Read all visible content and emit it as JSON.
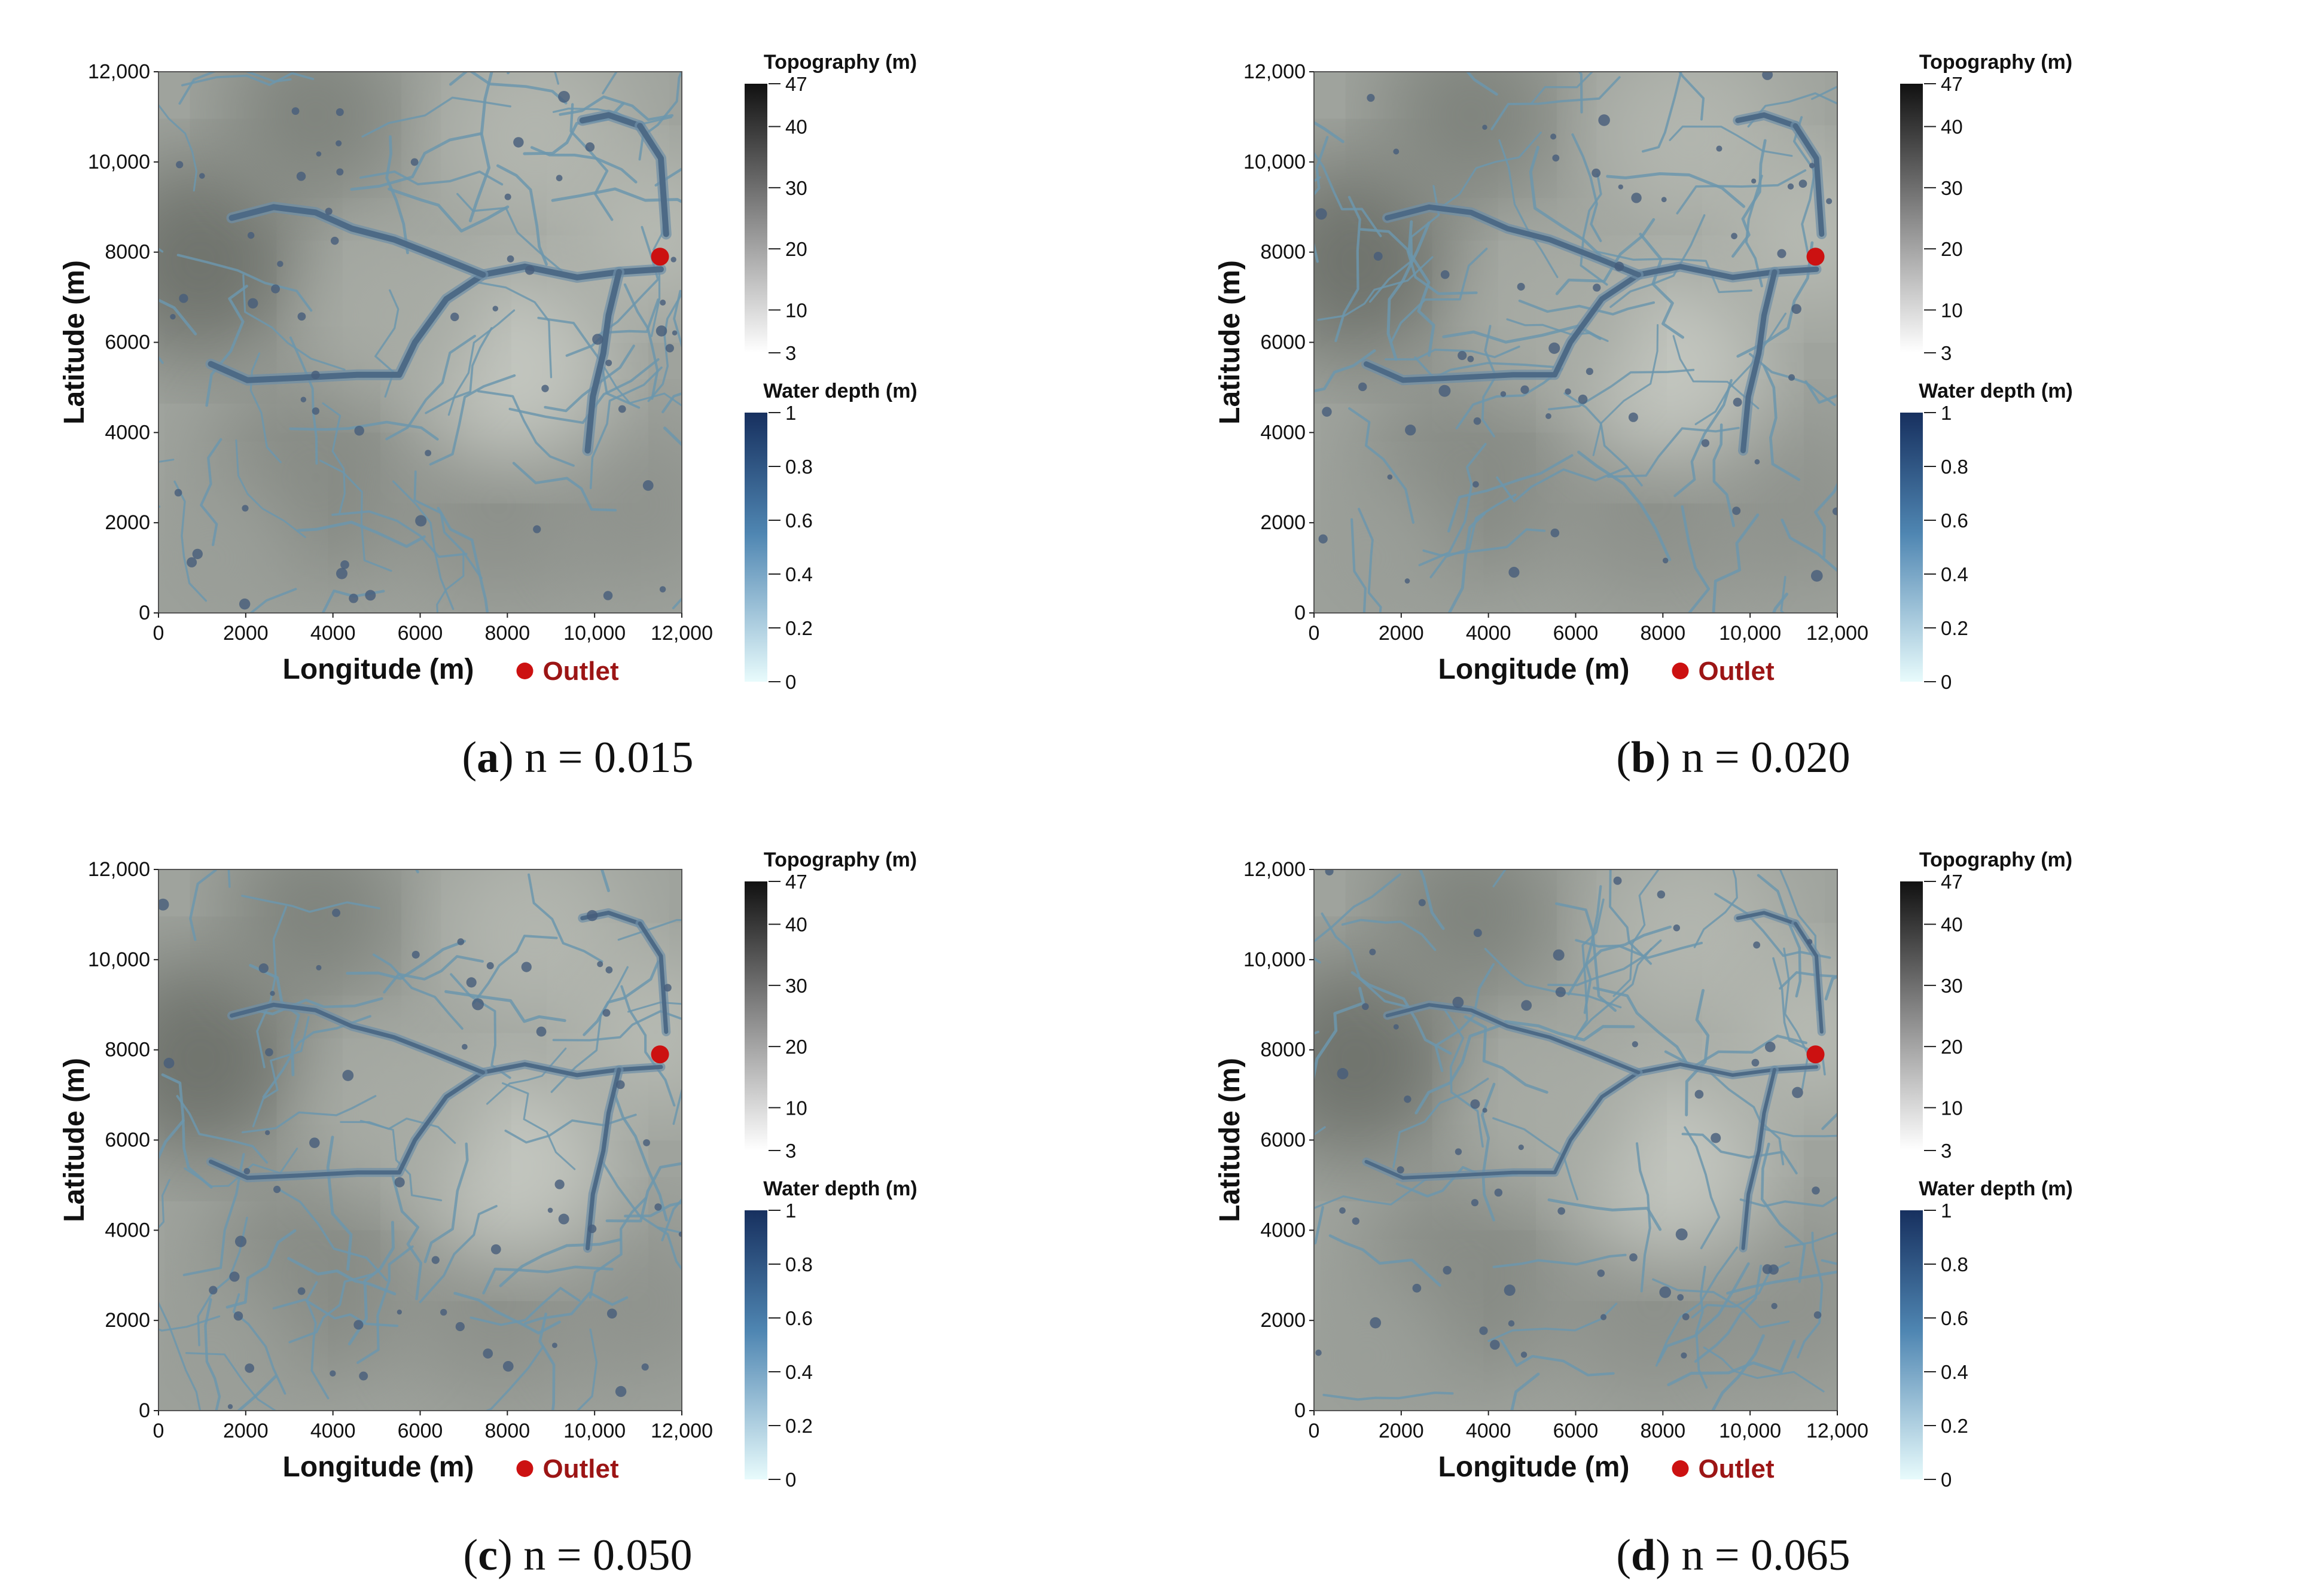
{
  "common": {
    "x_label": "Longitude (m)",
    "y_label": "Latitude (m)",
    "x_ticks": [
      "0",
      "2000",
      "4000",
      "6000",
      "8000",
      "10,000",
      "12,000"
    ],
    "x_tick_values": [
      0,
      2000,
      4000,
      6000,
      8000,
      10000,
      12000
    ],
    "y_ticks": [
      "0",
      "2000",
      "4000",
      "6000",
      "8000",
      "10,000",
      "12,000"
    ],
    "y_tick_values": [
      0,
      2000,
      4000,
      6000,
      8000,
      10000,
      12000
    ],
    "extent_m": [
      0,
      12000
    ],
    "topography_legend": {
      "title": "Topography (m)",
      "ticks": [
        "47",
        "40",
        "30",
        "20",
        "10",
        "3"
      ],
      "values": [
        47,
        40,
        30,
        20,
        10,
        3
      ],
      "min": 3,
      "max": 47,
      "color_low": "#ffffff",
      "color_high": "#111111"
    },
    "water_legend": {
      "title": "Water depth (m)",
      "ticks": [
        "1",
        "0.8",
        "0.6",
        "0.4",
        "0.2",
        "0"
      ],
      "values": [
        1,
        0.8,
        0.6,
        0.4,
        0.2,
        0
      ],
      "min": 0,
      "max": 1,
      "color_low": "#e8fbfc",
      "color_high": "#17305f"
    },
    "outlet_label": "Outlet",
    "outlet_color": "#cc1111",
    "outlet_location_m": [
      11500,
      7900
    ]
  },
  "panels": [
    {
      "letter": "a",
      "label": "n = 0.015"
    },
    {
      "letter": "b",
      "label": "n = 0.020"
    },
    {
      "letter": "c",
      "label": "n = 0.050"
    },
    {
      "letter": "d",
      "label": "n = 0.065"
    }
  ]
}
